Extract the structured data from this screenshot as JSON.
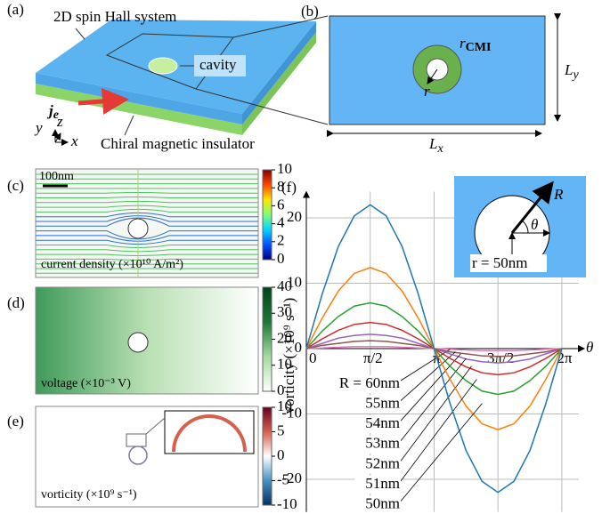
{
  "figure": {
    "panel_a": {
      "label": "(a)",
      "system": "2D spin Hall system",
      "cavity": "cavity",
      "current": "j",
      "current_sub": "e",
      "substrate": "Chiral magnetic insulator",
      "axes": [
        "y",
        "z",
        "x"
      ]
    },
    "panel_b": {
      "label": "(b)",
      "r_cmi": "r",
      "r_cmi_sub": "CMI",
      "r": "r",
      "ly": "L",
      "ly_sub": "y",
      "lx": "L",
      "lx_sub": "x"
    },
    "panel_c": {
      "label": "(c)",
      "scale": "100nm",
      "caption": "current density (×10¹⁰ A/m²)",
      "clim": [
        0,
        10
      ],
      "cticks": [
        0,
        2,
        4,
        6,
        8,
        10
      ],
      "colors": [
        "#00007f",
        "#0050ff",
        "#00d4ff",
        "#7dff7a",
        "#ffe600",
        "#ff4700",
        "#7f0000"
      ]
    },
    "panel_d": {
      "label": "(d)",
      "caption": "voltage (×10⁻³ V)",
      "clim": [
        0,
        40
      ],
      "cticks": [
        0,
        10,
        20,
        30,
        40
      ],
      "colors": [
        "#ffffff",
        "#a6dba0",
        "#1b7837",
        "#00441b"
      ]
    },
    "panel_e": {
      "label": "(e)",
      "caption": "vorticity (×10⁹ s⁻¹)",
      "clim": [
        -10,
        10
      ],
      "cticks": [
        -10,
        -5,
        0,
        5,
        10
      ],
      "colors": [
        "#053061",
        "#4393c3",
        "#ffffff",
        "#d6604d",
        "#67001f"
      ]
    }
  },
  "chart_data": {
    "type": "line",
    "label": "(f)",
    "ylabel": "vorticity (×10⁹ s⁻¹)",
    "xlabel": "θ",
    "inset": {
      "R": "R",
      "theta": "θ",
      "r": "r = 50nm"
    },
    "x": [
      0,
      0.393,
      0.785,
      1.178,
      1.571,
      1.963,
      2.356,
      2.749,
      3.142,
      3.534,
      3.927,
      4.32,
      4.712,
      5.105,
      5.498,
      5.89,
      6.283
    ],
    "series": [
      {
        "name": "R = 60nm",
        "color": "#e377c2",
        "values": [
          0,
          0.1,
          0.2,
          0.3,
          0.3,
          0.3,
          0.2,
          0.1,
          0,
          -0.1,
          -0.2,
          -0.3,
          -0.3,
          -0.3,
          -0.2,
          -0.1,
          0
        ]
      },
      {
        "name": "55nm",
        "color": "#8c564b",
        "values": [
          0,
          0.5,
          0.8,
          1.1,
          1.2,
          1.1,
          0.8,
          0.5,
          0,
          -0.5,
          -0.8,
          -1.1,
          -1.2,
          -1.1,
          -0.8,
          -0.5,
          0
        ]
      },
      {
        "name": "54nm",
        "color": "#9467bd",
        "values": [
          0,
          0.8,
          1.6,
          2,
          2.2,
          2,
          1.6,
          0.8,
          0,
          -0.8,
          -1.6,
          -2,
          -2.2,
          -2,
          -1.6,
          -0.8,
          0
        ]
      },
      {
        "name": "53nm",
        "color": "#d62728",
        "values": [
          0,
          1.5,
          2.8,
          3.7,
          4,
          3.7,
          2.8,
          1.5,
          0,
          -1.5,
          -2.8,
          -3.7,
          -4,
          -3.7,
          -2.8,
          -1.5,
          0
        ]
      },
      {
        "name": "52nm",
        "color": "#2ca02c",
        "values": [
          0,
          2.7,
          4.9,
          6.5,
          7,
          6.5,
          4.9,
          2.7,
          0,
          -2.7,
          -4.9,
          -6.5,
          -7,
          -6.5,
          -4.9,
          -2.7,
          0
        ]
      },
      {
        "name": "51nm",
        "color": "#ff7f0e",
        "values": [
          0,
          4.7,
          8.8,
          11.5,
          12.4,
          11.5,
          8.8,
          4.7,
          0,
          -4.7,
          -8.8,
          -11.5,
          -12.4,
          -11.5,
          -8.8,
          -4.7,
          0
        ]
      },
      {
        "name": "50nm",
        "color": "#1f77b4",
        "values": [
          0,
          8.4,
          15.6,
          20.3,
          22,
          20.3,
          15.6,
          8.4,
          0,
          -8.4,
          -15.6,
          -20.3,
          -22,
          -20.3,
          -15.6,
          -8.4,
          0
        ]
      }
    ],
    "xlim": [
      0,
      6.92
    ],
    "ylim": [
      -25,
      24
    ],
    "xticks": [
      0,
      {
        "value": 1.5708,
        "label": "π/2"
      },
      {
        "value": 3.1416,
        "label": "π"
      },
      {
        "value": 4.7124,
        "label": "3π/2"
      },
      {
        "value": 6.2832,
        "label": "2π"
      }
    ],
    "yticks": [
      -20,
      -10,
      0,
      10,
      20
    ],
    "grid": true
  }
}
